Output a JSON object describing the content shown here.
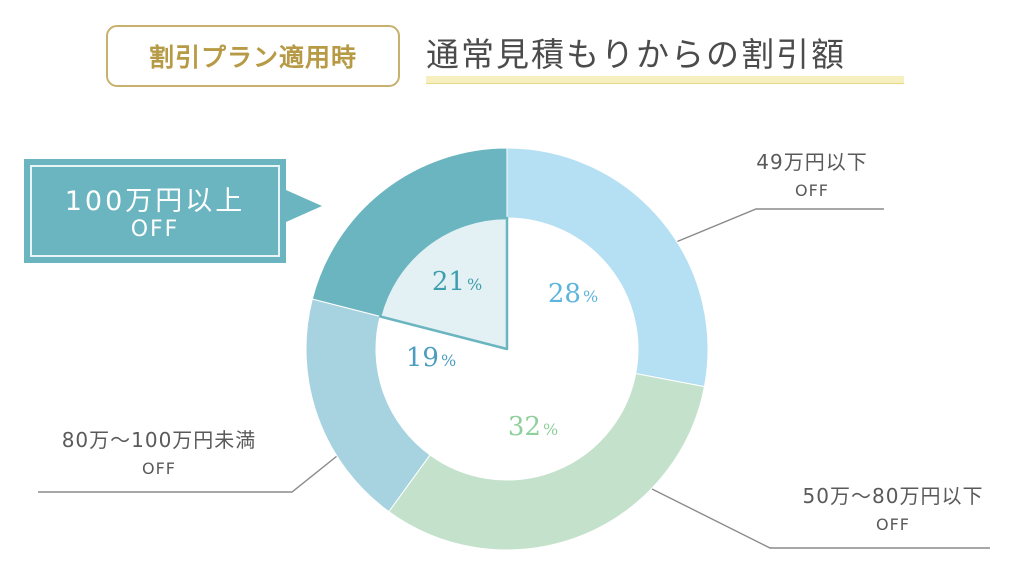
{
  "header": {
    "badge_label": "割引プラン適用時",
    "title": "通常見積もりからの割引額"
  },
  "callout": {
    "line1": "100万円以上",
    "line2": "OFF"
  },
  "labels": {
    "under_49": {
      "main": "49万円以下",
      "sub": "OFF"
    },
    "from_50_to_80": {
      "main": "50万～80万円以下",
      "sub": "OFF"
    },
    "from_80_to_100": {
      "main": "80万～100万円未満",
      "sub": "OFF"
    }
  },
  "chart_data": {
    "type": "pie",
    "style": "donut",
    "categories": [
      "49万円以下 OFF",
      "50万～80万円以下 OFF",
      "80万～100万円未満 OFF",
      "100万円以上 OFF"
    ],
    "values": [
      28,
      32,
      19,
      21
    ],
    "value_labels": [
      "28%",
      "32%",
      "19%",
      "21%"
    ],
    "unit": "%",
    "highlighted": "100万円以上 OFF",
    "colors": [
      "#b5dff3",
      "#c4e1cc",
      "#a7d3e1",
      "#6bb5c0"
    ],
    "label_colors": [
      "#5db4dd",
      "#8fcf9c",
      "#4c9dbf",
      "#3f9eae"
    ]
  },
  "colors": {
    "gold": "#c7b16d",
    "teal": "#6bb5c0",
    "underline": "#f6efbf"
  }
}
